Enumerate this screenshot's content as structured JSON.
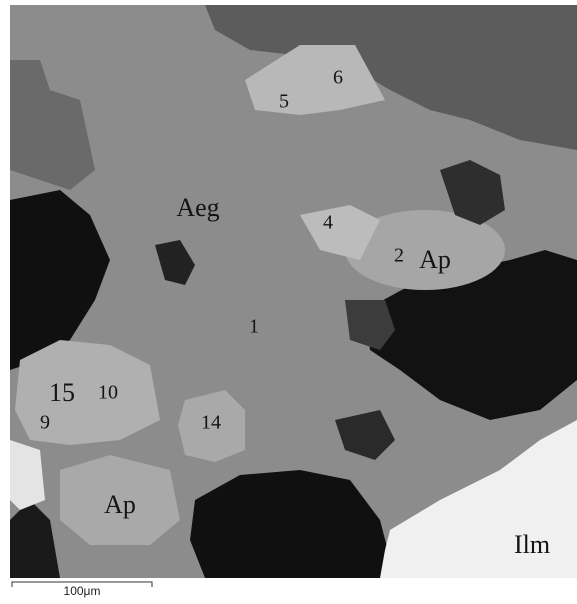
{
  "image": {
    "labels": [
      "6",
      "5",
      "Aeg",
      "4",
      "2",
      "Ap",
      "1",
      "15",
      "10",
      "9",
      "14",
      "Ap",
      "Ilm"
    ]
  },
  "scale_bar": {
    "label": "100μm"
  }
}
